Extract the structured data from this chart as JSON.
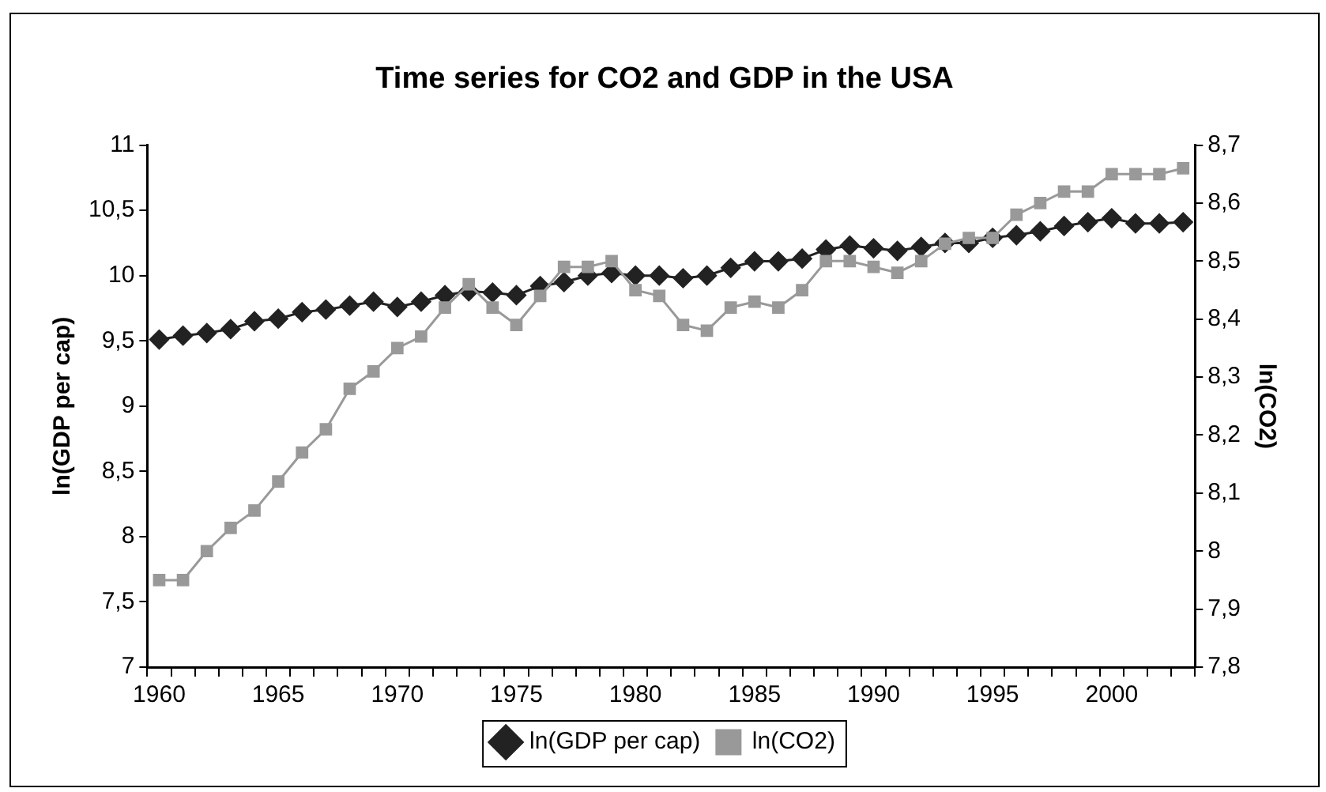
{
  "chart_data": {
    "type": "line",
    "title": "Time series for CO2 and GDP in the USA",
    "ylabel": "ln(GDP per cap)",
    "y2label": "ln(CO2)",
    "categories": [
      "1960",
      null,
      null,
      null,
      null,
      "1965",
      null,
      null,
      null,
      null,
      "1970",
      null,
      null,
      null,
      null,
      "1975",
      null,
      null,
      null,
      null,
      "1980",
      null,
      null,
      null,
      null,
      "1985",
      null,
      null,
      null,
      null,
      "1990",
      null,
      null,
      null,
      null,
      "1995",
      null,
      null,
      null,
      null,
      "2000",
      null,
      null,
      null
    ],
    "series": [
      {
        "name": "ln(GDP per cap)",
        "color": "#222222",
        "marker": "diamond",
        "values": [
          9.51,
          9.54,
          9.56,
          9.59,
          9.65,
          9.67,
          9.72,
          9.74,
          9.77,
          9.8,
          9.76,
          9.8,
          9.85,
          9.88,
          9.87,
          9.85,
          9.92,
          9.95,
          10.0,
          10.02,
          10.0,
          10.0,
          9.98,
          10.0,
          10.06,
          10.11,
          10.11,
          10.13,
          10.2,
          10.23,
          10.21,
          10.19,
          10.22,
          10.25,
          10.25,
          10.29,
          10.31,
          10.34,
          10.38,
          10.41,
          10.44,
          10.4,
          10.4,
          10.41
        ]
      },
      {
        "name": "ln(CO2)",
        "color": "#999999",
        "marker": "square",
        "axis": "y2",
        "values": [
          7.95,
          7.95,
          8.0,
          8.04,
          8.07,
          8.12,
          8.17,
          8.21,
          8.28,
          8.31,
          8.35,
          8.37,
          8.42,
          8.46,
          8.42,
          8.39,
          8.44,
          8.49,
          8.49,
          8.5,
          8.45,
          8.44,
          8.39,
          8.38,
          8.42,
          8.43,
          8.42,
          8.45,
          8.5,
          8.5,
          8.49,
          8.48,
          8.5,
          8.53,
          8.54,
          8.54,
          8.58,
          8.6,
          8.62,
          8.62,
          8.65,
          8.65,
          8.65,
          8.66
        ]
      }
    ],
    "ylim": [
      7,
      11
    ],
    "yticks": [
      7,
      {
        "value": 7.5,
        "label": "7,5"
      },
      8,
      {
        "value": 8.5,
        "label": "8,5"
      },
      9,
      {
        "value": 9.5,
        "label": "9,5"
      },
      10,
      {
        "value": 10.5,
        "label": "10,5"
      },
      11
    ],
    "y2lim": [
      7.8,
      8.7
    ],
    "y2ticks": [
      {
        "value": 7.8,
        "label": "7,8"
      },
      {
        "value": 7.9,
        "label": "7,9"
      },
      {
        "value": 8,
        "label": "8"
      },
      {
        "value": 8.1,
        "label": "8,1"
      },
      {
        "value": 8.2,
        "label": "8,2"
      },
      {
        "value": 8.3,
        "label": "8,3"
      },
      {
        "value": 8.4,
        "label": "8,4"
      },
      {
        "value": 8.5,
        "label": "8,5"
      },
      {
        "value": 8.6,
        "label": "8,6"
      },
      {
        "value": 8.7,
        "label": "8,7"
      }
    ],
    "grid": false,
    "legend": "bottom",
    "line_style": "solid"
  }
}
